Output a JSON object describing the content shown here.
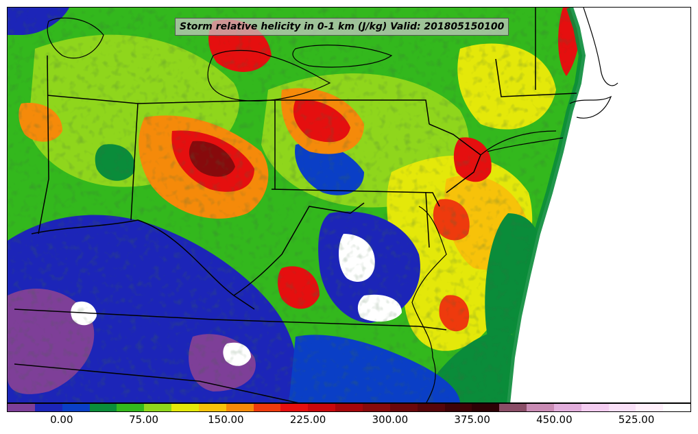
{
  "map": {
    "title": "Storm relative helicity in 0-1 km (J/kg) Valid: 201805150100",
    "variable": "Storm relative helicity in 0-1 km",
    "units": "J/kg",
    "valid_time": "201805150100",
    "region": "Mid-Atlantic / Ohio Valley, USA",
    "layers": [
      "filled-helicity-contours",
      "state-borders",
      "coastlines",
      "lakes"
    ]
  },
  "colorbar": {
    "levels_start": -50,
    "levels_step": 25,
    "ticks": [
      "0.00",
      "75.00",
      "150.00",
      "225.00",
      "300.00",
      "375.00",
      "450.00",
      "525.00"
    ],
    "tick_values": [
      0,
      75,
      150,
      225,
      300,
      375,
      450,
      525
    ],
    "value_min": -50,
    "value_max": 575,
    "colors": [
      "#7e3f98",
      "#1c25b8",
      "#0a3fc6",
      "#0a8c3a",
      "#33b81d",
      "#8fd61c",
      "#e4e80a",
      "#f7c20a",
      "#f58a0a",
      "#ee3a0d",
      "#e50f0f",
      "#c9070c",
      "#a5060b",
      "#870a0c",
      "#6b070b",
      "#55050a",
      "#3e0307",
      "#2d0205",
      "#8a4e67",
      "#c98bb4",
      "#e2aedc",
      "#f4cdf1",
      "#f9e0f7",
      "#fff0fb",
      "#ffffff"
    ]
  }
}
